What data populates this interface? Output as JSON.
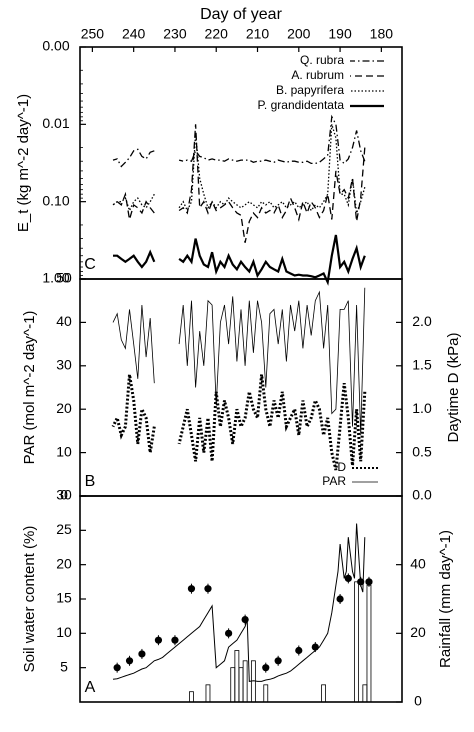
{
  "chart_data": [
    {
      "id": "panel-c",
      "type": "line",
      "letter": "C",
      "ylabel": "E_t (kg m^-2 day^-1)",
      "yscale": "log",
      "ylim": [
        1.0,
        0.001
      ],
      "yticks": [
        {
          "v": 0.001,
          "label": "0.00"
        },
        {
          "v": 0.01,
          "label": "0.01"
        },
        {
          "v": 0.1,
          "label": "0.10"
        },
        {
          "v": 1.0,
          "label": "1.00"
        }
      ],
      "legend_position": "top-right",
      "series": [
        {
          "name": "Q. rubra",
          "style": "dashdot",
          "x": [
            184,
            185,
            186,
            187,
            188,
            189,
            190,
            191,
            192,
            193,
            194,
            195,
            196,
            197,
            198,
            199,
            200,
            201,
            202,
            203,
            204,
            205,
            206,
            207,
            208,
            209,
            210,
            211,
            212,
            213,
            214,
            215,
            216,
            217,
            218,
            219,
            220,
            221,
            222,
            223,
            224,
            225,
            226,
            227,
            228,
            229,
            235,
            236,
            237,
            238,
            239,
            240,
            241,
            242,
            243,
            244,
            245
          ],
          "y": [
            0.03,
            0.022,
            0.012,
            0.02,
            0.028,
            0.032,
            0.029,
            0.01,
            0.008,
            0.025,
            0.028,
            0.031,
            0.032,
            0.032,
            0.03,
            0.031,
            0.031,
            0.03,
            0.03,
            0.031,
            0.03,
            0.029,
            0.031,
            0.03,
            0.029,
            0.03,
            0.03,
            0.031,
            0.029,
            0.029,
            0.029,
            0.03,
            0.029,
            0.028,
            0.03,
            0.029,
            0.029,
            0.028,
            0.029,
            0.027,
            0.026,
            0.022,
            0.03,
            0.029,
            0.03,
            0.029,
            0.022,
            0.023,
            0.028,
            0.026,
            0.021,
            0.022,
            0.027,
            0.031,
            0.035,
            0.028,
            0.029
          ]
        },
        {
          "name": "A. rubrum",
          "style": "dashed",
          "x": [
            184,
            185,
            186,
            187,
            188,
            189,
            190,
            191,
            192,
            193,
            194,
            195,
            196,
            197,
            198,
            199,
            200,
            201,
            202,
            203,
            204,
            205,
            206,
            207,
            208,
            209,
            210,
            211,
            212,
            213,
            214,
            215,
            216,
            217,
            218,
            219,
            220,
            221,
            222,
            223,
            224,
            225,
            226,
            227,
            228,
            229,
            235,
            236,
            237,
            238,
            239,
            240,
            241,
            242,
            243,
            244,
            245
          ],
          "y": [
            0.02,
            0.09,
            0.18,
            0.05,
            0.09,
            0.07,
            0.08,
            0.04,
            0.17,
            0.08,
            0.13,
            0.16,
            0.12,
            0.1,
            0.14,
            0.1,
            0.17,
            0.12,
            0.09,
            0.13,
            0.16,
            0.11,
            0.14,
            0.13,
            0.14,
            0.12,
            0.16,
            0.14,
            0.18,
            0.34,
            0.15,
            0.14,
            0.12,
            0.1,
            0.11,
            0.12,
            0.13,
            0.1,
            0.14,
            0.1,
            0.12,
            0.01,
            0.07,
            0.14,
            0.12,
            0.13,
            0.14,
            0.12,
            0.1,
            0.14,
            0.12,
            0.11,
            0.17,
            0.08,
            0.11,
            0.1,
            0.11
          ]
        },
        {
          "name": "B. papyrifera",
          "style": "dotted",
          "x": [
            184,
            185,
            186,
            187,
            188,
            189,
            190,
            191,
            192,
            193,
            194,
            195,
            196,
            197,
            198,
            199,
            200,
            201,
            202,
            203,
            204,
            205,
            206,
            207,
            208,
            209,
            210,
            211,
            212,
            213,
            214,
            215,
            216,
            217,
            218,
            219,
            220,
            221,
            222,
            223,
            224,
            225,
            226,
            227,
            228,
            229,
            235,
            236,
            237,
            238,
            239,
            240,
            241,
            242,
            243,
            244,
            245
          ],
          "y": [
            0.065,
            0.1,
            0.14,
            0.05,
            0.11,
            0.08,
            0.08,
            0.015,
            0.01,
            0.08,
            0.1,
            0.12,
            0.11,
            0.13,
            0.1,
            0.11,
            0.12,
            0.1,
            0.11,
            0.12,
            0.1,
            0.11,
            0.12,
            0.1,
            0.11,
            0.1,
            0.12,
            0.11,
            0.1,
            0.11,
            0.12,
            0.11,
            0.1,
            0.09,
            0.11,
            0.1,
            0.12,
            0.1,
            0.12,
            0.08,
            0.05,
            0.013,
            0.1,
            0.13,
            0.1,
            0.12,
            0.08,
            0.1,
            0.12,
            0.11,
            0.09,
            0.1,
            0.13,
            0.09,
            0.1,
            0.1,
            0.11
          ]
        },
        {
          "name": "P. grandidentata",
          "style": "solid",
          "x": [
            184,
            185,
            186,
            187,
            188,
            189,
            190,
            191,
            192,
            193,
            194,
            195,
            196,
            197,
            198,
            199,
            200,
            201,
            202,
            203,
            204,
            205,
            206,
            207,
            208,
            209,
            210,
            211,
            212,
            213,
            214,
            215,
            216,
            217,
            218,
            219,
            220,
            221,
            222,
            223,
            224,
            225,
            226,
            227,
            228,
            229,
            235,
            236,
            237,
            238,
            239,
            240,
            241,
            242,
            243,
            244,
            245
          ],
          "y": [
            0.5,
            0.7,
            0.4,
            0.55,
            0.8,
            0.6,
            0.7,
            0.27,
            0.5,
            1.1,
            0.85,
            0.9,
            0.95,
            0.92,
            0.9,
            0.9,
            0.88,
            0.9,
            0.85,
            0.8,
            0.55,
            0.8,
            0.75,
            0.7,
            0.6,
            0.75,
            0.9,
            0.6,
            0.8,
            0.7,
            0.6,
            0.75,
            0.65,
            0.5,
            0.7,
            0.6,
            0.8,
            0.45,
            0.7,
            0.65,
            0.5,
            0.3,
            0.6,
            0.5,
            0.6,
            0.55,
            0.6,
            0.45,
            0.6,
            0.7,
            0.6,
            0.5,
            0.55,
            0.6,
            0.55,
            0.5,
            0.5
          ]
        }
      ]
    },
    {
      "id": "panel-b",
      "type": "line",
      "letter": "B",
      "ylabel": "PAR (mol m^-2 day^-1)",
      "ylim": [
        0,
        50
      ],
      "yticks": [
        {
          "v": 0,
          "label": "0"
        },
        {
          "v": 10,
          "label": "10"
        },
        {
          "v": 20,
          "label": "20"
        },
        {
          "v": 30,
          "label": "30"
        },
        {
          "v": 40,
          "label": "40"
        },
        {
          "v": 50,
          "label": "50"
        }
      ],
      "y2label": "Daytime D (kPa)",
      "y2lim": [
        0,
        2.5
      ],
      "y2ticks": [
        {
          "v": 0,
          "label": "0.0"
        },
        {
          "v": 0.5,
          "label": "0.5"
        },
        {
          "v": 1.0,
          "label": "1.0"
        },
        {
          "v": 1.5,
          "label": "1.5"
        },
        {
          "v": 2.0,
          "label": "2.0"
        }
      ],
      "legend_position": "bottom-right",
      "series": [
        {
          "name": "PAR",
          "style": "solid",
          "axis": "left",
          "x": [
            184,
            185,
            186,
            187,
            188,
            189,
            190,
            191,
            192,
            193,
            194,
            195,
            196,
            197,
            198,
            199,
            200,
            201,
            202,
            203,
            204,
            205,
            206,
            207,
            208,
            209,
            210,
            211,
            212,
            213,
            214,
            215,
            216,
            217,
            218,
            219,
            220,
            221,
            222,
            223,
            224,
            225,
            226,
            227,
            228,
            229,
            235,
            236,
            237,
            238,
            239,
            240,
            241,
            242,
            243,
            244,
            245
          ],
          "y": [
            48,
            14,
            44,
            16,
            45,
            43,
            43,
            20,
            19,
            44,
            34,
            47,
            45,
            37,
            44,
            34,
            45,
            38,
            44,
            31,
            43,
            35,
            43,
            42,
            25,
            40,
            45,
            33,
            45,
            30,
            43,
            31,
            46,
            35,
            44,
            40,
            21,
            44,
            45,
            30,
            38,
            25,
            45,
            30,
            44,
            35,
            26,
            41,
            32,
            44,
            27,
            35,
            43,
            34,
            36,
            42,
            40
          ]
        },
        {
          "name": "D",
          "style": "dotted-thick",
          "axis": "right",
          "x": [
            184,
            185,
            186,
            187,
            188,
            189,
            190,
            191,
            192,
            193,
            194,
            195,
            196,
            197,
            198,
            199,
            200,
            201,
            202,
            203,
            204,
            205,
            206,
            207,
            208,
            209,
            210,
            211,
            212,
            213,
            214,
            215,
            216,
            217,
            218,
            219,
            220,
            221,
            222,
            223,
            224,
            225,
            226,
            227,
            228,
            229,
            235,
            236,
            237,
            238,
            239,
            240,
            241,
            242,
            243,
            244,
            245
          ],
          "y": [
            1.2,
            0.4,
            1.0,
            0.35,
            0.9,
            1.3,
            0.8,
            0.3,
            0.5,
            0.9,
            0.7,
            1.0,
            1.1,
            0.9,
            0.8,
            1.1,
            0.7,
            1.0,
            0.9,
            0.8,
            1.2,
            0.9,
            1.1,
            0.8,
            1.0,
            1.4,
            0.9,
            1.0,
            1.2,
            0.9,
            0.8,
            1.0,
            0.6,
            0.9,
            1.1,
            0.8,
            1.2,
            0.4,
            0.9,
            0.5,
            0.9,
            0.4,
            0.7,
            1.0,
            0.8,
            0.6,
            0.8,
            0.5,
            0.9,
            1.0,
            0.6,
            1.1,
            1.4,
            0.8,
            0.7,
            0.9,
            0.8
          ]
        }
      ]
    },
    {
      "id": "panel-a",
      "type": "line",
      "letter": "A",
      "ylabel": "Soil water content (%)",
      "ylim": [
        0,
        30
      ],
      "yticks": [
        {
          "v": 5,
          "label": "5"
        },
        {
          "v": 10,
          "label": "10"
        },
        {
          "v": 15,
          "label": "15"
        },
        {
          "v": 20,
          "label": "20"
        },
        {
          "v": 25,
          "label": "25"
        },
        {
          "v": 30,
          "label": "30"
        }
      ],
      "y2label": "Rainfall (mm day^-1)",
      "y2lim": [
        0,
        60
      ],
      "y2ticks": [
        {
          "v": 0,
          "label": "0"
        },
        {
          "v": 20,
          "label": "20"
        },
        {
          "v": 40,
          "label": "40"
        }
      ],
      "soil_water": {
        "x": [
          184,
          184.5,
          185,
          186,
          186.5,
          187,
          188,
          188.5,
          189,
          190,
          190.5,
          191,
          192,
          193,
          194,
          195,
          196,
          197,
          198,
          199,
          200,
          201,
          202,
          203,
          204,
          205,
          206,
          207,
          208,
          209,
          210,
          211,
          212,
          212.5,
          213,
          214,
          215,
          216,
          217,
          218,
          219,
          220,
          221,
          222,
          223,
          224,
          225,
          226,
          227,
          228,
          229,
          230,
          231,
          232,
          233,
          234,
          235,
          236,
          237,
          238,
          239,
          240,
          241,
          242,
          243,
          244,
          245
        ],
        "y": [
          24,
          16,
          17,
          26,
          18,
          19,
          24,
          19,
          18,
          23,
          19,
          17,
          13,
          10,
          9,
          8,
          7.5,
          7,
          6.5,
          6,
          5.5,
          5,
          4.5,
          4.2,
          4,
          3.8,
          3.5,
          3.3,
          3.2,
          3.0,
          3.0,
          3.1,
          3.0,
          12,
          11,
          10,
          9,
          8.5,
          8,
          6,
          5.5,
          5,
          14,
          13,
          12,
          11,
          10.5,
          10,
          9.5,
          9,
          8.5,
          8,
          7.5,
          7,
          6.5,
          6.2,
          6,
          5.5,
          5,
          4.8,
          4.5,
          4.2,
          4,
          3.8,
          3.6,
          3.4,
          3.3
        ]
      },
      "measured_points": {
        "x": [
          183,
          185,
          188,
          190,
          196,
          200,
          205,
          208,
          213,
          217,
          222,
          226,
          230,
          234,
          238,
          241,
          244
        ],
        "y": [
          17.5,
          17.5,
          18.0,
          15.0,
          8.0,
          7.5,
          6.0,
          5.0,
          12.0,
          10.0,
          16.5,
          16.5,
          9.0,
          9.0,
          7.0,
          6.0,
          5.0
        ]
      },
      "rainfall": {
        "x": [
          183,
          184,
          186,
          194,
          208,
          211,
          213,
          214,
          215,
          216,
          222,
          226
        ],
        "y": [
          34,
          5,
          35,
          5,
          5,
          12,
          12,
          10,
          15,
          10,
          5,
          3
        ]
      }
    }
  ],
  "x_axis": {
    "title": "Day of year",
    "ticks": [
      180,
      190,
      200,
      210,
      220,
      230,
      240,
      250
    ]
  }
}
